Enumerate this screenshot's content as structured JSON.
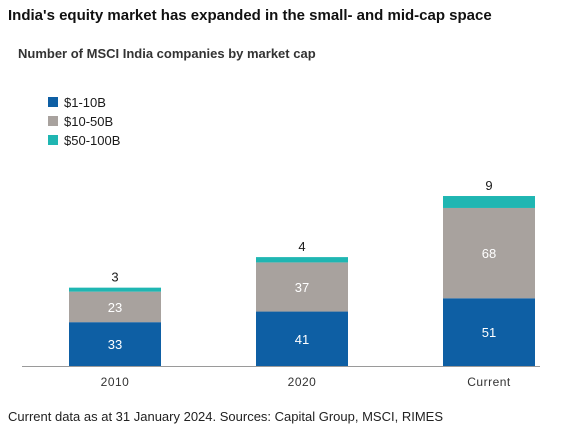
{
  "title": "India's equity market has expanded in the small- and mid-cap space",
  "footer": "Current data as at 31 January 2024. Sources: Capital Group, MSCI, RIMES",
  "colors": {
    "small": "#0e5fa4",
    "mid": "#a8a29e",
    "large": "#1fb6b2"
  },
  "chart_data": {
    "type": "bar",
    "stacked": true,
    "title": "Number of MSCI India companies by market cap",
    "categories": [
      "2010",
      "2020",
      "Current"
    ],
    "series": [
      {
        "name": "$1-10B",
        "values": [
          33,
          41,
          51
        ]
      },
      {
        "name": "$10-50B",
        "values": [
          23,
          37,
          68
        ]
      },
      {
        "name": "$50-100B",
        "values": [
          3,
          4,
          9
        ]
      }
    ],
    "ylim": [
      0,
      128
    ],
    "grid": false,
    "legend": "top-left"
  }
}
